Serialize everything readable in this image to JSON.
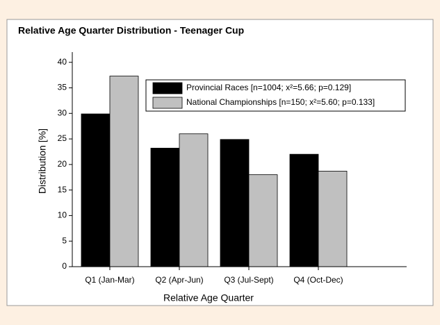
{
  "chart_data": {
    "type": "bar",
    "title": "Relative Age Quarter Distribution - Teenager Cup",
    "x_label": "Relative Age Quarter",
    "y_label": "Distribution [%]",
    "categories": [
      "Q1 (Jan-Mar)",
      "Q2 (Apr-Jun)",
      "Q3 (Jul-Sept)",
      "Q4 (Oct-Dec)"
    ],
    "series": [
      {
        "name": "Provincial Races [n=1004; x²=5.66; p=0.129]",
        "color": "#000000",
        "values": [
          29.9,
          23.2,
          24.9,
          22.0
        ]
      },
      {
        "name": "National Championships [n=150; x²=5.60; p=0.133]",
        "color": "#c0c0c0",
        "values": [
          37.3,
          26.0,
          18.0,
          18.7
        ]
      }
    ],
    "ylim": [
      0,
      42
    ],
    "yticks": [
      0,
      5,
      10,
      15,
      20,
      25,
      30,
      35,
      40
    ],
    "legend": "upper right"
  }
}
